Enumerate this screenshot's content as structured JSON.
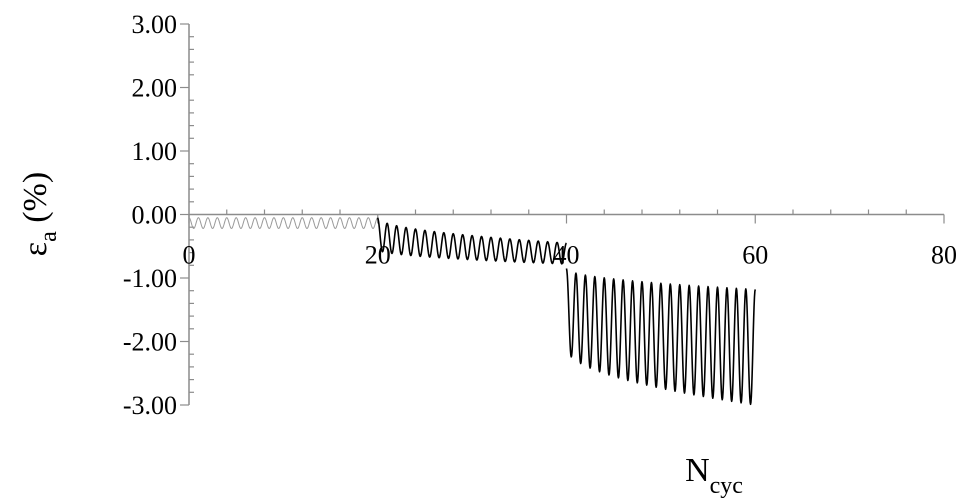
{
  "chart_data": {
    "type": "line",
    "title": "",
    "xlabel": {
      "main": "N",
      "sub": "cyc"
    },
    "ylabel": {
      "main": "ε",
      "sub": "a",
      "suffix": " (%)"
    },
    "xlim": [
      0,
      80
    ],
    "ylim": [
      -3,
      3
    ],
    "x_ticks": [
      0,
      20,
      40,
      60,
      80
    ],
    "x_tick_labels": [
      "0",
      "20",
      "40",
      "60",
      "80"
    ],
    "y_ticks": [
      3,
      2,
      1,
      0,
      -1,
      -2,
      -3
    ],
    "y_tick_labels": [
      "3.00",
      "2.00",
      "1.00",
      "0.00",
      "-1.00",
      "-2.00",
      "-3.00"
    ],
    "x_minor_step": 4,
    "y_minor_step": 0.2,
    "grid": false,
    "legend": "none",
    "series": [
      {
        "stage": 1,
        "x_start": 0,
        "x_end": 20,
        "cycles": 20,
        "peak": [
          -0.05,
          -0.05
        ],
        "trough": [
          -0.22,
          -0.22
        ],
        "color": "#9a9a9a"
      },
      {
        "stage": 2,
        "x_start": 20,
        "x_end": 40,
        "cycles": 20,
        "peak": [
          -0.05,
          -0.45
        ],
        "trough": [
          -0.55,
          -0.78
        ],
        "color": "#000000"
      },
      {
        "stage": 3,
        "x_start": 40,
        "x_end": 60,
        "cycles": 20,
        "peak": [
          -0.85,
          -1.18
        ],
        "trough": [
          -2.1,
          -3.0
        ],
        "color": "#000000"
      }
    ]
  }
}
